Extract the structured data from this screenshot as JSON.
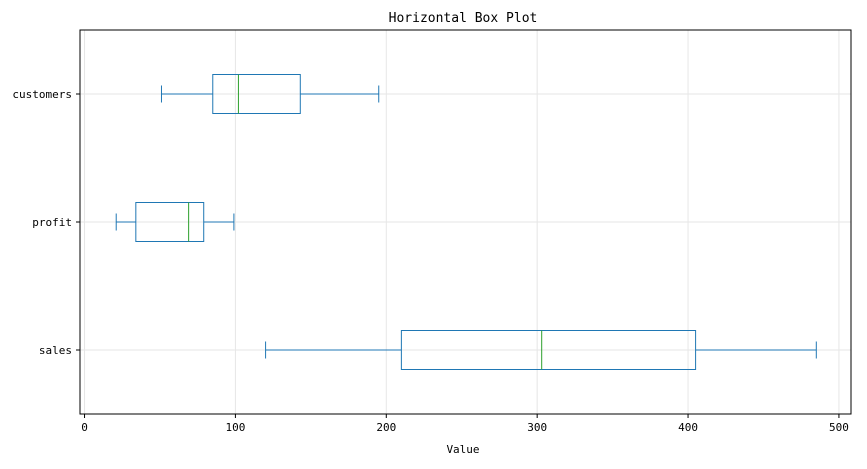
{
  "chart_data": {
    "type": "boxplot",
    "orientation": "horizontal",
    "title": "Horizontal Box Plot",
    "xlabel": "Value",
    "ylabel": "",
    "xlim": [
      -3,
      508
    ],
    "xticks": [
      0,
      100,
      200,
      300,
      400,
      500
    ],
    "grid": true,
    "categories": [
      "sales",
      "profit",
      "customers"
    ],
    "boxes": [
      {
        "category": "sales",
        "whisker_low": 120,
        "q1": 210,
        "median": 303,
        "q3": 405,
        "whisker_high": 485
      },
      {
        "category": "profit",
        "whisker_low": 21,
        "q1": 34,
        "median": 69,
        "q3": 79,
        "whisker_high": 99
      },
      {
        "category": "customers",
        "whisker_low": 51,
        "q1": 85,
        "median": 102,
        "q3": 143,
        "whisker_high": 195
      }
    ],
    "colors": {
      "box": "#1f77b4",
      "median": "#2ca02c",
      "grid": "#e6e6e6",
      "axis": "#000000"
    }
  }
}
